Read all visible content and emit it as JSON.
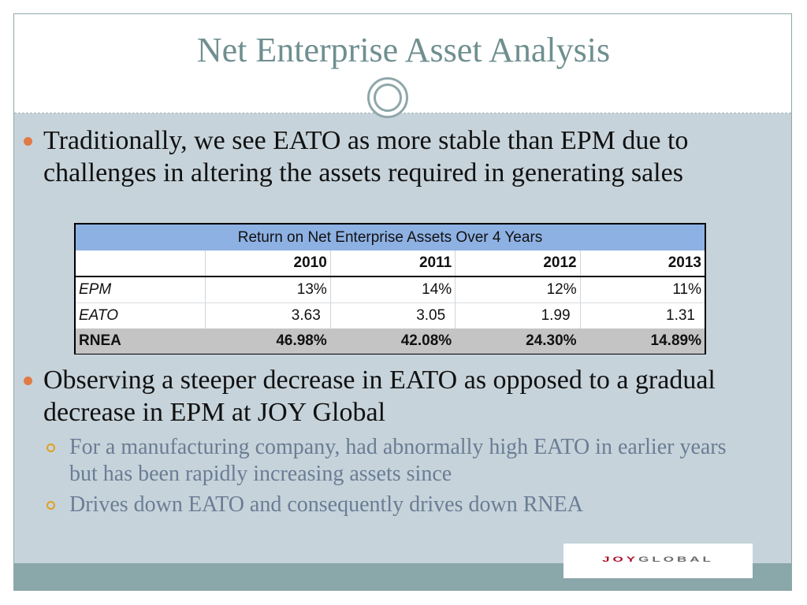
{
  "slide": {
    "title": "Net Enterprise Asset Analysis",
    "bullet1": "Traditionally, we see EATO as more stable than EPM due to challenges in altering the assets required in generating sales",
    "bullet2": "Observing a steeper decrease in EATO as opposed to a gradual decrease in EPM at JOY Global",
    "sub1": "For a manufacturing company, had abnormally high EATO in earlier years but has been rapidly increasing assets since",
    "sub2": "Drives down EATO and consequently drives down RNEA"
  },
  "table": {
    "title": "Return on Net Enterprise Assets Over 4 Years",
    "years": [
      "2010",
      "2011",
      "2012",
      "2013"
    ],
    "rows": [
      {
        "label": "EPM",
        "values": [
          "13%",
          "14%",
          "12%",
          "11%"
        ]
      },
      {
        "label": "EATO",
        "values": [
          "3.63",
          "3.05",
          "1.99",
          "1.31"
        ]
      },
      {
        "label": "RNEA",
        "values": [
          "46.98%",
          "42.08%",
          "24.30%",
          "14.89%"
        ]
      }
    ]
  },
  "logo": {
    "part1": "JOY",
    "part2": "GLOBAL"
  },
  "colors": {
    "title": "#6f8f90",
    "accent_bullet": "#e07a45",
    "sub_bullet": "#e0a022",
    "table_header": "#8eb1e3",
    "footer": "#8aa7aa"
  }
}
